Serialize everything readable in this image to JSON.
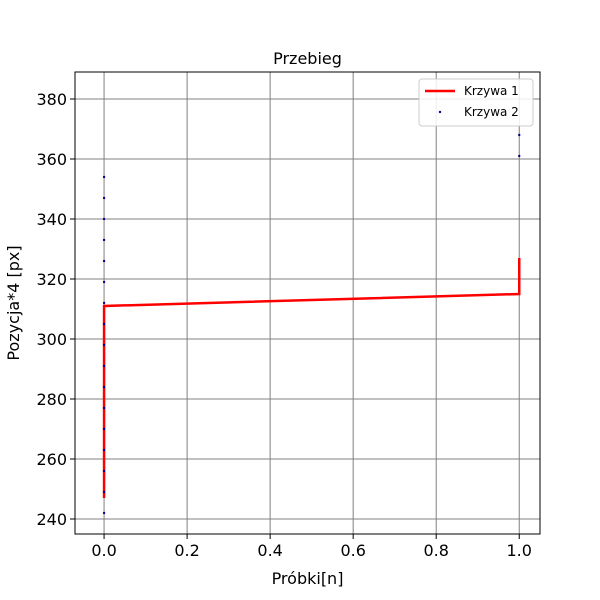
{
  "chart_data": {
    "type": "line",
    "title": "Przebieg",
    "xlabel": "Próbki[n]",
    "ylabel": "Pozycja*4 [px]",
    "xlim": [
      -0.07,
      1.05
    ],
    "ylim": [
      235,
      389
    ],
    "xticks": [
      0.0,
      0.2,
      0.4,
      0.6,
      0.8,
      1.0
    ],
    "xtick_labels": [
      "0.0",
      "0.2",
      "0.4",
      "0.6",
      "0.8",
      "1.0"
    ],
    "yticks": [
      240,
      260,
      280,
      300,
      320,
      340,
      360,
      380
    ],
    "ytick_labels": [
      "240",
      "260",
      "280",
      "300",
      "320",
      "340",
      "360",
      "380"
    ],
    "grid": true,
    "legend_position": "top-right",
    "series": [
      {
        "name": "Krzywa 1",
        "kind": "line",
        "color": "#ff0000",
        "points": [
          [
            0,
            247
          ],
          [
            0,
            311
          ],
          [
            1,
            315
          ],
          [
            1,
            327
          ]
        ]
      },
      {
        "name": "Krzywa 2",
        "kind": "scatter",
        "color": "#00008b",
        "points": [
          [
            0,
            242
          ],
          [
            0,
            249
          ],
          [
            0,
            256
          ],
          [
            0,
            263
          ],
          [
            0,
            270
          ],
          [
            0,
            277
          ],
          [
            0,
            284
          ],
          [
            0,
            291
          ],
          [
            0,
            298
          ],
          [
            0,
            305
          ],
          [
            0,
            312
          ],
          [
            0,
            319
          ],
          [
            0,
            326
          ],
          [
            0,
            333
          ],
          [
            0,
            340
          ],
          [
            0,
            347
          ],
          [
            0,
            354
          ],
          [
            1,
            361
          ],
          [
            1,
            368
          ]
        ]
      }
    ]
  }
}
